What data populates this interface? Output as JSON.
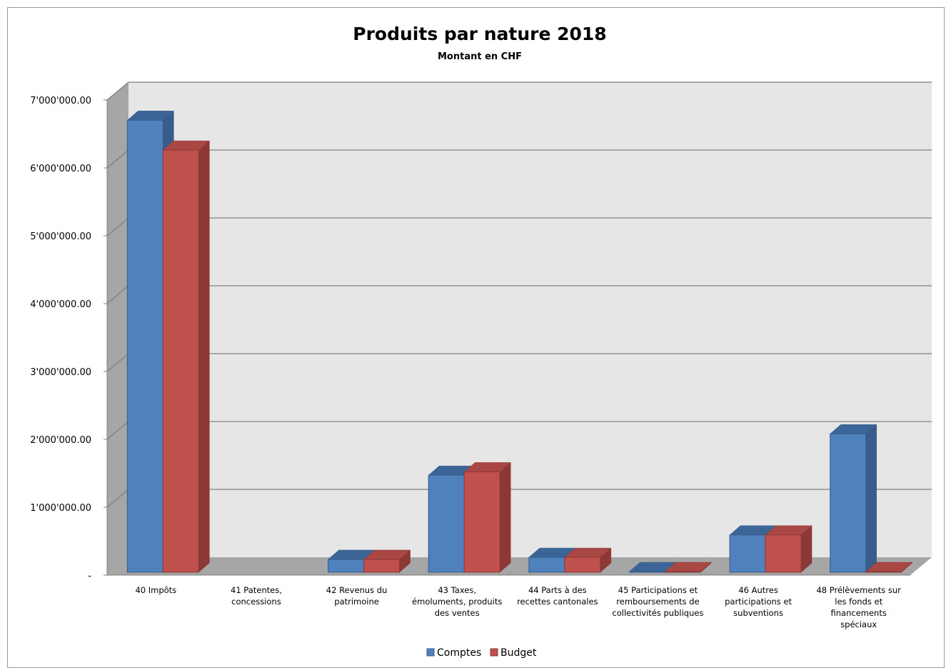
{
  "chart_data": {
    "type": "bar",
    "title": "Produits par nature 2018",
    "subtitle": "Montant en CHF",
    "xlabel": "",
    "ylabel": "",
    "ylim": [
      0,
      7000000
    ],
    "yticks": [
      {
        "value": 0,
        "label": "-"
      },
      {
        "value": 1000000,
        "label": "1'000'000.00"
      },
      {
        "value": 2000000,
        "label": "2'000'000.00"
      },
      {
        "value": 3000000,
        "label": "3'000'000.00"
      },
      {
        "value": 4000000,
        "label": "4'000'000.00"
      },
      {
        "value": 5000000,
        "label": "5'000'000.00"
      },
      {
        "value": 6000000,
        "label": "6'000'000.00"
      },
      {
        "value": 7000000,
        "label": "7'000'000.00"
      }
    ],
    "grid": true,
    "legend_position": "bottom",
    "categories": [
      [
        "40 Impôts"
      ],
      [
        "41 Patentes,",
        "concessions"
      ],
      [
        "42 Revenus du",
        "patrimoine"
      ],
      [
        "43 Taxes,",
        "émoluments, produits",
        "des ventes"
      ],
      [
        "44 Parts à des",
        "recettes cantonales"
      ],
      [
        "45 Participations et",
        "remboursements de",
        "collectivités publiques"
      ],
      [
        "46 Autres",
        "participations et",
        "subventions"
      ],
      [
        "48 Prélèvements sur",
        "les fonds et",
        "financements",
        "spéciaux"
      ]
    ],
    "series": [
      {
        "name": "Comptes",
        "color": "#4f81bd",
        "side_color": "#385d8a",
        "top_color": "#3b6596",
        "values": [
          6660000,
          0,
          190000,
          1430000,
          220000,
          10000,
          550000,
          2040000
        ]
      },
      {
        "name": "Budget",
        "color": "#c0504d",
        "side_color": "#8c3836",
        "top_color": "#a84744",
        "values": [
          6220000,
          0,
          190000,
          1480000,
          220000,
          10000,
          550000,
          10000
        ]
      }
    ]
  }
}
